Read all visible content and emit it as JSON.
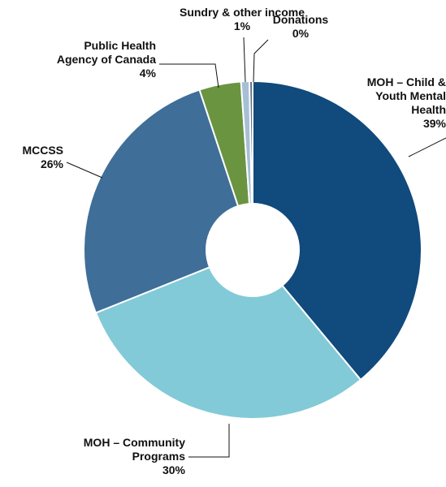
{
  "chart_data": {
    "type": "pie",
    "variant": "donut",
    "title": "",
    "slices": [
      {
        "label": "MOH – Child & Youth Mental Health",
        "label_lines": [
          "MOH – Child &",
          "Youth Mental",
          "Health"
        ],
        "pct_label": "39%",
        "value": 39,
        "color": "#114a7c"
      },
      {
        "label": "MOH – Community Programs",
        "label_lines": [
          "MOH – Community",
          "Programs"
        ],
        "pct_label": "30%",
        "value": 30,
        "color": "#82cad7"
      },
      {
        "label": "MCCSS",
        "label_lines": [
          "MCCSS"
        ],
        "pct_label": "26%",
        "value": 26,
        "color": "#3f6e98"
      },
      {
        "label": "Public Health Agency of Canada",
        "label_lines": [
          "Public Health",
          "Agency of Canada"
        ],
        "pct_label": "4%",
        "value": 4,
        "color": "#6a9440"
      },
      {
        "label": "Sundry & other income",
        "label_lines": [
          "Sundry & other income"
        ],
        "pct_label": "1%",
        "value": 0.8,
        "color": "#a6bfd6"
      },
      {
        "label": "Donations",
        "label_lines": [
          "Donations"
        ],
        "pct_label": "0%",
        "value": 0.3,
        "color": "#5a6a7a"
      }
    ]
  }
}
